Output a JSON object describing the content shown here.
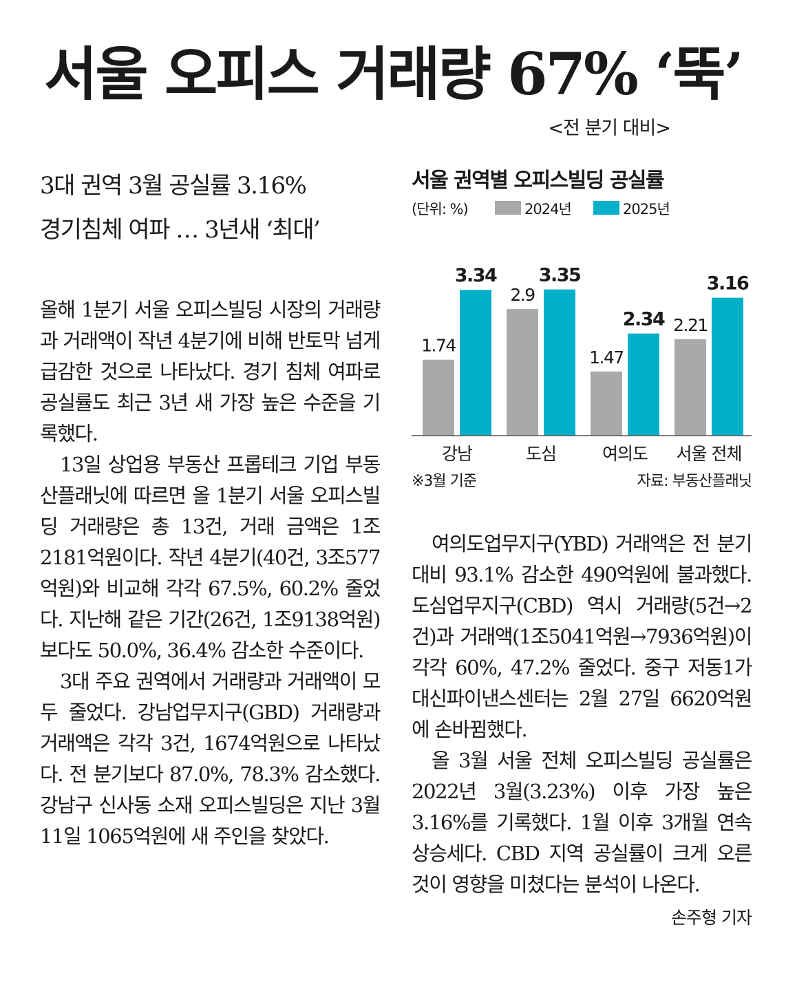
{
  "headline": "서울 오피스 거래량 67% ‘뚝’",
  "headline_sub": "<전 분기 대비>",
  "subheads": [
    "3대 권역 3월 공실률 3.16%",
    "경기침체 여파 … 3년새 ‘최대’"
  ],
  "left_column": [
    "올해 1분기 서울 오피스빌딩 시장의 거래량과 거래액이 작년 4분기에 비해 반토막 넘게 급감한 것으로 나타났다. 경기 침체 여파로 공실률도 최근 3년 새 가장 높은 수준을 기록했다.",
    "13일 상업용 부동산 프롭테크 기업 부동산플래닛에 따르면 올 1분기 서울 오피스빌딩 거래량은 총 13건, 거래 금액은 1조2181억원이다. 작년 4분기(40건, 3조577억원)와 비교해 각각 67.5%, 60.2% 줄었다. 지난해 같은 기간(26건, 1조9138억원)보다도 50.0%, 36.4% 감소한 수준이다.",
    "3대 주요 권역에서 거래량과 거래액이 모두 줄었다. 강남업무지구(GBD) 거래량과 거래액은 각각 3건, 1674억원으로 나타났다. 전 분기보다 87.0%, 78.3% 감소했다. 강남구 신사동 소재 오피스빌딩은 지난 3월 11일 1065억원에 새 주인을 찾았다."
  ],
  "right_column": [
    "여의도업무지구(YBD) 거래액은 전 분기 대비 93.1% 감소한 490억원에 불과했다. 도심업무지구(CBD) 역시 거래량(5건→2건)과 거래액(1조5041억원→7936억원)이 각각 60%, 47.2% 줄었다. 중구 저동1가 대신파이낸스센터는 2월 27일 6620억원에 손바뀜했다.",
    "올 3월 서울 전체 오피스빌딩 공실률은 2022년 3월(3.23%) 이후 가장 높은 3.16%를 기록했다. 1월 이후 3개월 연속 상승세다. CBD 지역 공실률이 크게 오른 것이 영향을 미쳤다는 분석이 나온다."
  ],
  "byline": "손주형 기자",
  "chart": {
    "title": "서울 권역별 오피스빌딩 공실률",
    "unit": "(단위: %)",
    "note": "※3월 기준",
    "source": "자료: 부동산플래닛"
  },
  "chart_data": {
    "type": "bar",
    "title": "서울 권역별 오피스빌딩 공실률",
    "unit": "%",
    "categories": [
      "강남",
      "도심",
      "여의도",
      "서울 전체"
    ],
    "series": [
      {
        "name": "2024년",
        "values": [
          1.74,
          2.9,
          1.47,
          2.21
        ],
        "labels": [
          "1.74",
          "2.9",
          "1.47",
          "2.21"
        ],
        "color": "#a8a9ab"
      },
      {
        "name": "2025년",
        "values": [
          3.34,
          3.35,
          2.34,
          3.16
        ],
        "labels": [
          "3.34",
          "3.35",
          "2.34",
          "3.16"
        ],
        "color": "#00b0c8"
      }
    ],
    "ylim": [
      0,
      3.6
    ],
    "grid": false,
    "legend": "top"
  }
}
